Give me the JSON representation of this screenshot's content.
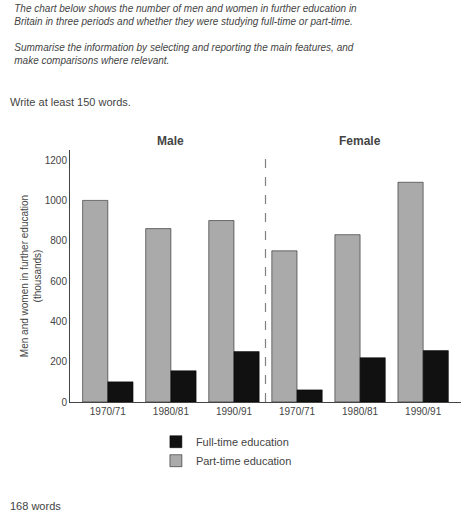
{
  "chart_data": {
    "type": "bar",
    "title": "The chart below shows the number of men and women in further education in\nBritain in three periods and whether they were studying full-time or part-time.\n\nSummarise the information by selecting and reporting the main features, and\nmake comparisons where relevant.",
    "subtitle": "Write at least 150 words.",
    "ylabel": "Men and women in further education\n(thousands)",
    "categories": [
      "1970/71",
      "1980/81",
      "1990/91",
      "1970/71",
      "1980/81",
      "1990/91"
    ],
    "series": [
      {
        "name": "Part-time education",
        "color": "#aaaaaa",
        "values": [
          1000,
          860,
          900,
          750,
          830,
          1090
        ]
      },
      {
        "name": "Full-time education",
        "color": "#111111",
        "values": [
          100,
          155,
          250,
          60,
          220,
          255
        ]
      }
    ],
    "annotations": [
      {
        "text": "Male",
        "category": 1
      },
      {
        "text": "Female",
        "category": 4
      },
      {
        "text": "168 words"
      }
    ],
    "ylim": [
      0,
      1250
    ],
    "yticks": [
      0,
      200,
      400,
      600,
      800,
      1000,
      1200
    ],
    "grid": false,
    "legend": "bottom"
  }
}
